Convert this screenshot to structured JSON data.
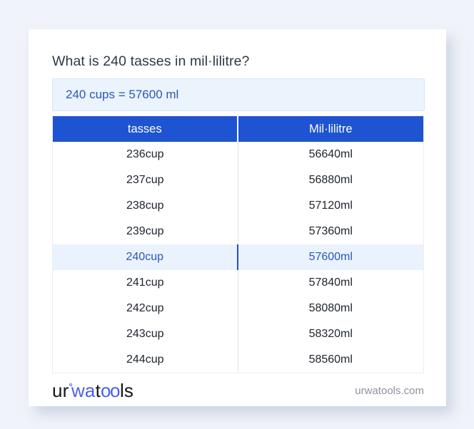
{
  "page": {
    "title": "What is 240 tasses in mil·lilitre?",
    "result": "240 cups = 57600 ml"
  },
  "table": {
    "headers": [
      "tasses",
      "Mil·lilitre"
    ],
    "rows": [
      {
        "from": "236cup",
        "to": "56640ml",
        "highlight": false
      },
      {
        "from": "237cup",
        "to": "56880ml",
        "highlight": false
      },
      {
        "from": "238cup",
        "to": "57120ml",
        "highlight": false
      },
      {
        "from": "239cup",
        "to": "57360ml",
        "highlight": false
      },
      {
        "from": "240cup",
        "to": "57600ml",
        "highlight": true
      },
      {
        "from": "241cup",
        "to": "57840ml",
        "highlight": false
      },
      {
        "from": "242cup",
        "to": "58080ml",
        "highlight": false
      },
      {
        "from": "243cup",
        "to": "58320ml",
        "highlight": false
      },
      {
        "from": "244cup",
        "to": "58560ml",
        "highlight": false
      }
    ]
  },
  "footer": {
    "logo": {
      "seg1": "ur",
      "ring": "°",
      "seg2": "wa",
      "seg3": "t",
      "seg4": "oo",
      "seg5": "ls"
    },
    "site": "urwatools.com"
  },
  "colors": {
    "page_bg": "#f0f3f9",
    "card_bg": "#ffffff",
    "header_blue": "#1e53d1",
    "link_blue": "#2a58b8",
    "result_bg": "#ebf3fc",
    "result_border": "#d8e6f6",
    "highlight_row_bg": "#eaf2fd",
    "row_text": "#20262e",
    "logo_blue": "#4a62e8",
    "muted_text": "#8d929c"
  }
}
